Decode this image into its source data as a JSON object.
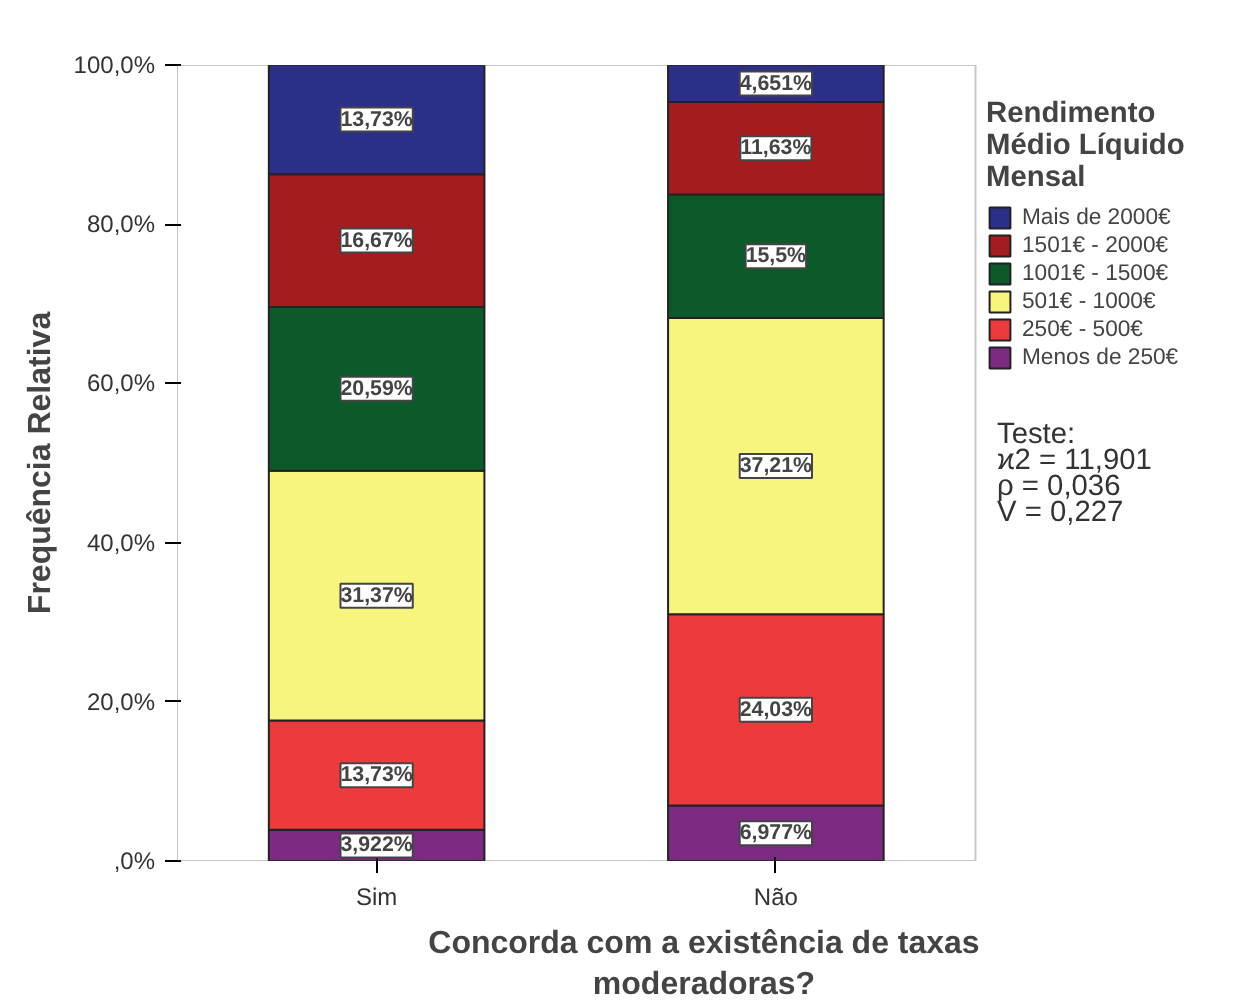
{
  "chart_data": {
    "type": "bar",
    "stacked": true,
    "xlabel": "Concorda com a existência de taxas\nmoderadoras?",
    "ylabel": "Frequência Relativa",
    "legend_title": "Rendimento\nMédio Líquido\nMensal",
    "legend": "right",
    "categories": [
      "Sim",
      "Não"
    ],
    "ylim": [
      0,
      100
    ],
    "yticks": [
      {
        "value": 0,
        "label": ",0%"
      },
      {
        "value": 20,
        "label": "20,0%"
      },
      {
        "value": 40,
        "label": "40,0%"
      },
      {
        "value": 60,
        "label": "60,0%"
      },
      {
        "value": 80,
        "label": "80,0%"
      },
      {
        "value": 100,
        "label": "100,0%"
      }
    ],
    "series": [
      {
        "name": "Menos de 250€",
        "color": "#7c2a82",
        "values": [
          3.922,
          6.977
        ],
        "value_labels": [
          "3,922%",
          "6,977%"
        ]
      },
      {
        "name": "250€ - 500€",
        "color": "#ee3a3d",
        "values": [
          13.73,
          24.03
        ],
        "value_labels": [
          "13,73%",
          "24,03%"
        ]
      },
      {
        "name": "501€ - 1000€",
        "color": "#f7f57d",
        "values": [
          31.37,
          37.21
        ],
        "value_labels": [
          "31,37%",
          "37,21%"
        ]
      },
      {
        "name": "1001€ - 1500€",
        "color": "#0c5a2a",
        "values": [
          20.59,
          15.5
        ],
        "value_labels": [
          "20,59%",
          "15,5%"
        ]
      },
      {
        "name": "1501€ - 2000€",
        "color": "#a51c1f",
        "values": [
          16.67,
          11.63
        ],
        "value_labels": [
          "16,67%",
          "11,63%"
        ]
      },
      {
        "name": "Mais de 2000€",
        "color": "#2b2f8a",
        "values": [
          13.73,
          4.651
        ],
        "value_labels": [
          "13,73%",
          "4,651%"
        ]
      }
    ],
    "annotations": [
      "Teste:",
      "ϰ2 = 11,901",
      "ρ = 0,036",
      "V = 0,227"
    ]
  }
}
